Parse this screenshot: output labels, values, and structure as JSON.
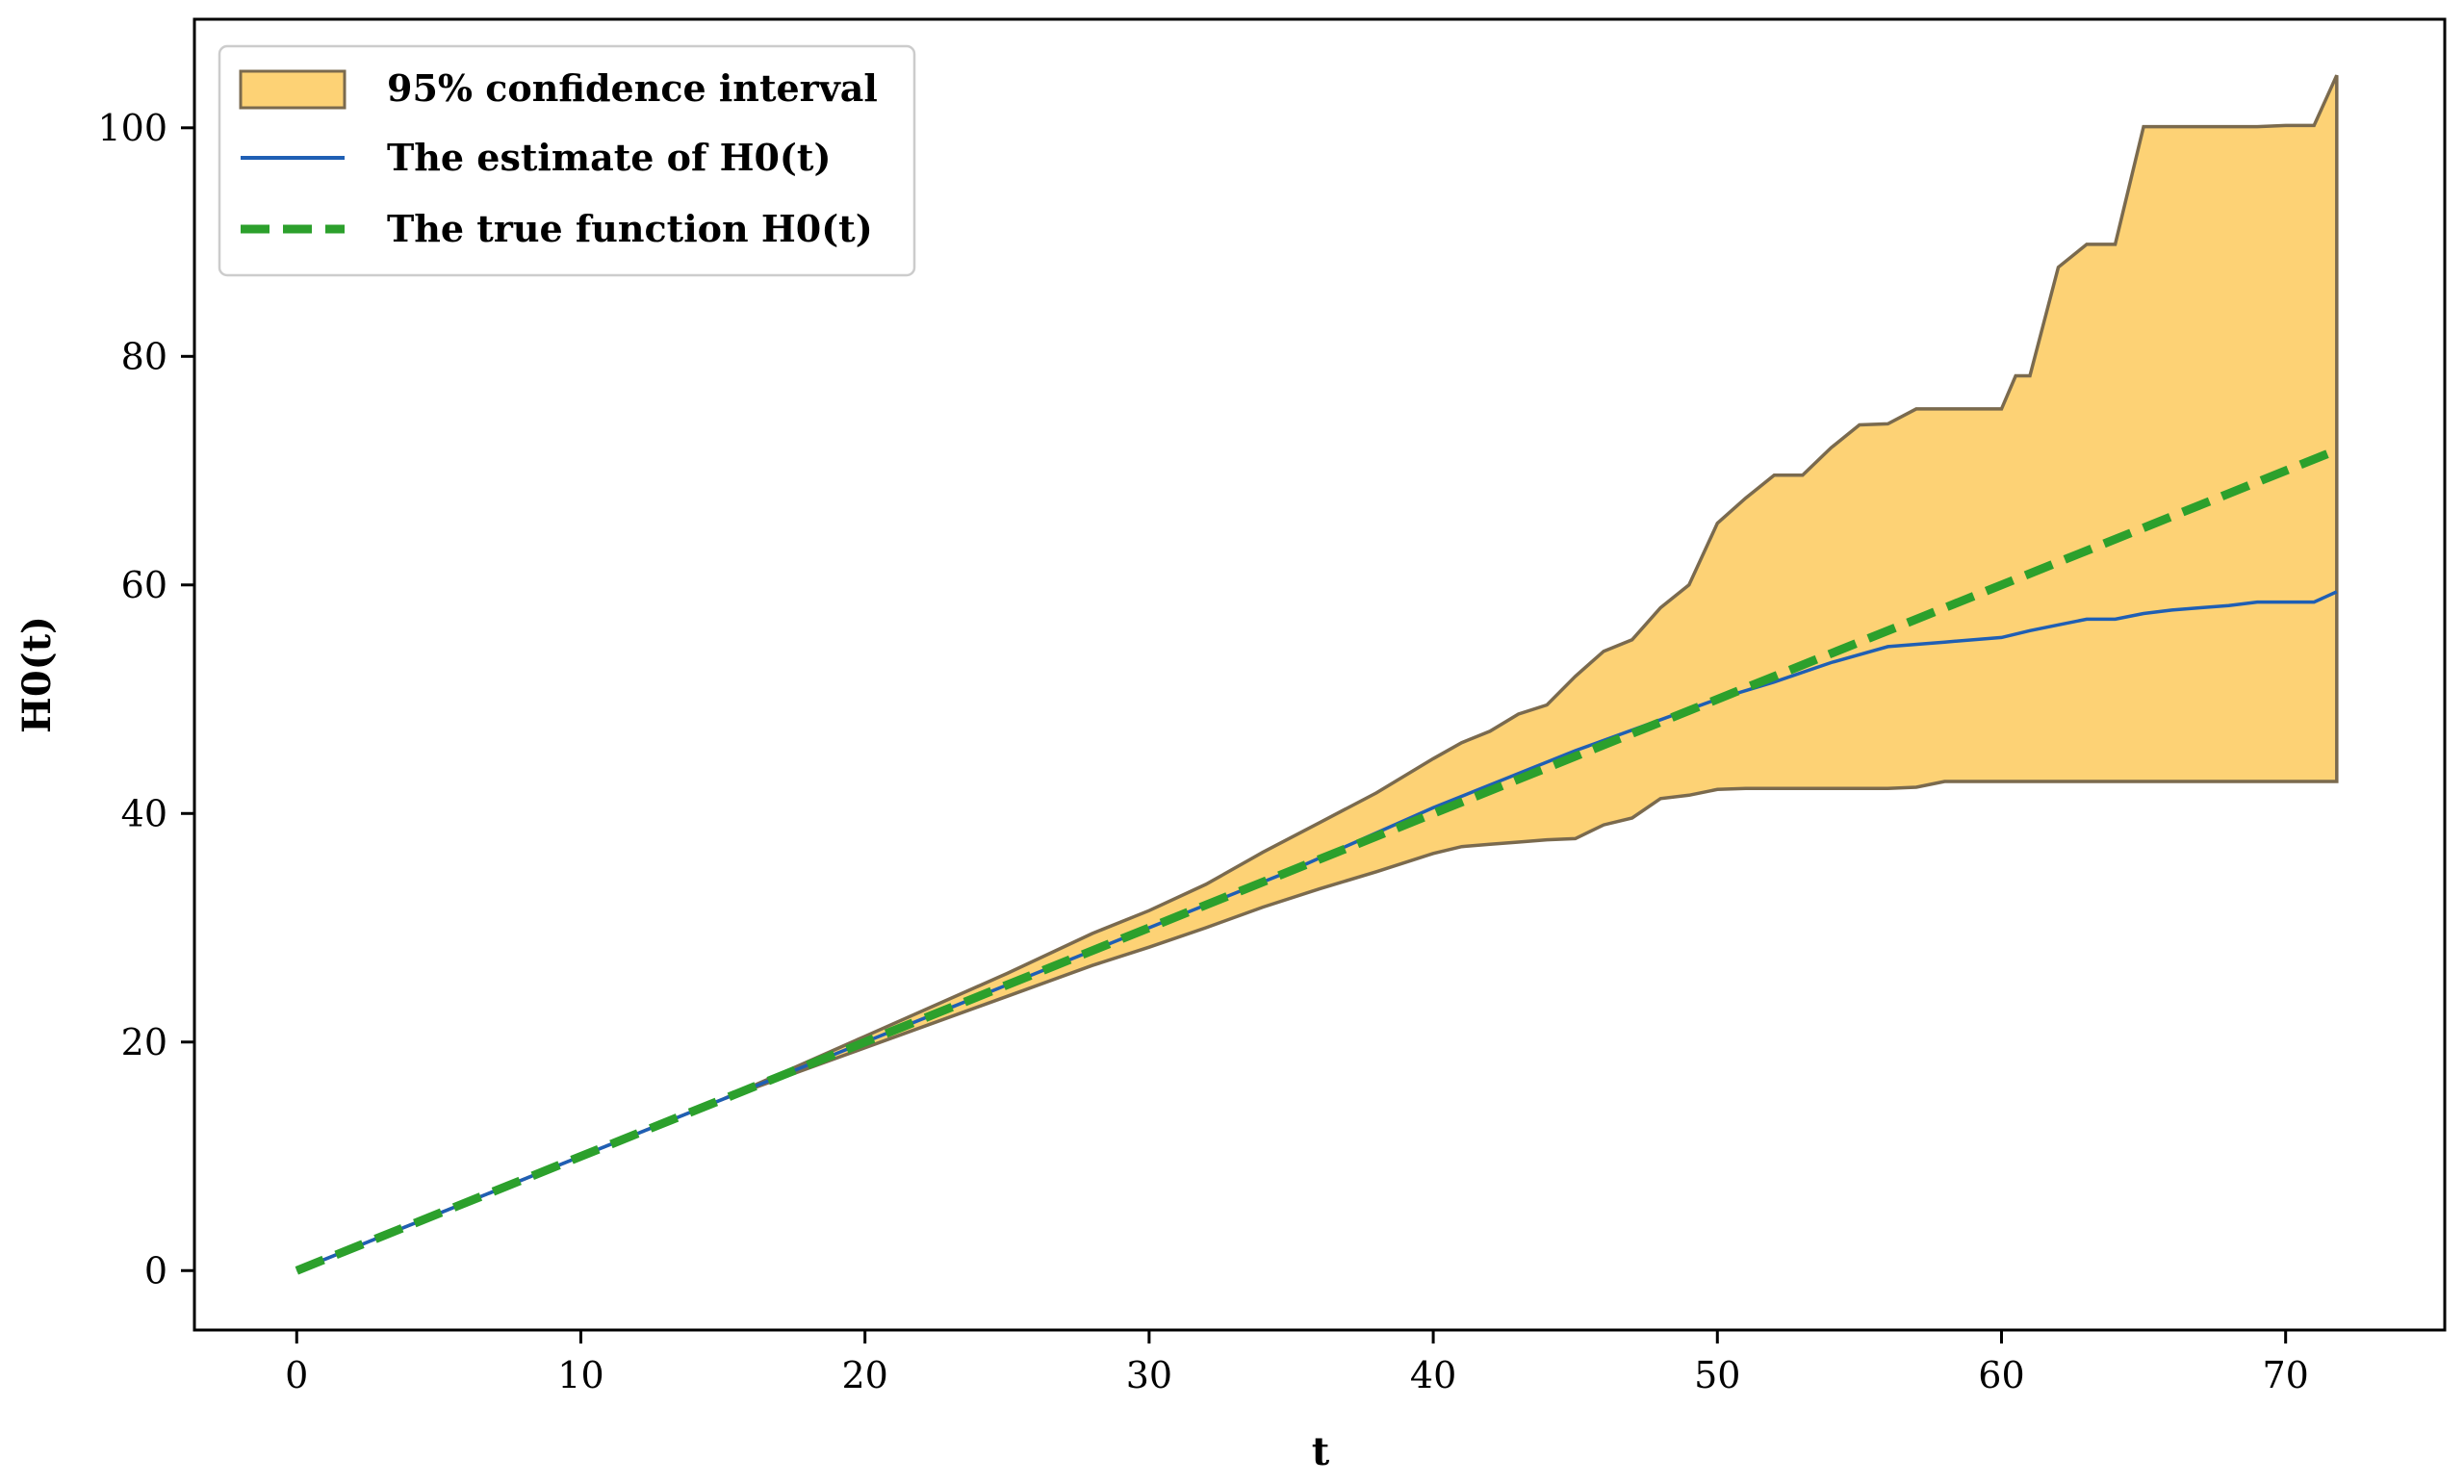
{
  "chart_data": {
    "type": "line",
    "title": "",
    "xlabel": "t",
    "ylabel": "H0(t)",
    "xlim": [
      -3.6,
      75.6
    ],
    "ylim": [
      -5.2,
      109.5
    ],
    "xticks": [
      0,
      10,
      20,
      30,
      40,
      50,
      60,
      70
    ],
    "yticks": [
      0,
      20,
      40,
      60,
      80,
      100
    ],
    "grid": false,
    "legend_position": "top-left",
    "colors": {
      "band_fill": "#fdd275",
      "band_edge": "#7a6a4e",
      "estimate": "#1f5fb4",
      "true": "#2ca02c"
    },
    "series": [
      {
        "name": "95% confidence interval",
        "kind": "band",
        "x": [
          0,
          5,
          10,
          15,
          20,
          25,
          28,
          30,
          32,
          34,
          36,
          38,
          40,
          41,
          42,
          43,
          44,
          45,
          46,
          47,
          48,
          49,
          50,
          51,
          52,
          53,
          54,
          55,
          56,
          57,
          58,
          59,
          60,
          60.5,
          61,
          62,
          63,
          64,
          65,
          66,
          67,
          68,
          69,
          70,
          71,
          71.8
        ],
        "lower": [
          0,
          5,
          10,
          15,
          19.5,
          24,
          26.7,
          28.3,
          30,
          31.8,
          33.4,
          34.9,
          36.5,
          37.1,
          37.3,
          37.5,
          37.7,
          37.8,
          39,
          39.6,
          41.3,
          41.6,
          42.1,
          42.2,
          42.2,
          42.2,
          42.2,
          42.2,
          42.2,
          42.3,
          42.8,
          42.8,
          42.8,
          42.8,
          42.8,
          42.8,
          42.8,
          42.8,
          42.8,
          42.8,
          42.8,
          42.8,
          42.8,
          42.8,
          42.8,
          42.8
        ],
        "upper": [
          0,
          5,
          10,
          15,
          20.5,
          26,
          29.5,
          31.5,
          33.8,
          36.6,
          39.2,
          41.8,
          44.8,
          46.2,
          47.2,
          48.7,
          49.5,
          52,
          54.2,
          55.2,
          58,
          60,
          65.4,
          67.6,
          69.6,
          69.6,
          72,
          74,
          74.1,
          75.4,
          75.4,
          75.4,
          75.4,
          78.3,
          78.3,
          87.8,
          89.8,
          89.8,
          100.1,
          100.1,
          100.1,
          100.1,
          100.1,
          100.2,
          100.2,
          104.6
        ]
      },
      {
        "name": "The estimate of H0(t)",
        "kind": "line",
        "x": [
          0,
          10,
          20,
          30,
          35,
          40,
          45,
          50,
          52,
          54,
          56,
          58,
          60,
          61,
          62,
          63,
          64,
          65,
          66,
          67,
          68,
          69,
          70,
          71,
          71.8
        ],
        "y": [
          0,
          10,
          20,
          30,
          35,
          40.5,
          45.5,
          50,
          51.5,
          53.2,
          54.6,
          55,
          55.4,
          56,
          56.5,
          57,
          57,
          57.5,
          57.8,
          58,
          58.2,
          58.5,
          58.5,
          58.5,
          59.4
        ]
      },
      {
        "name": "The true function H0(t)",
        "kind": "dashed-line",
        "x": [
          0,
          71.8
        ],
        "y": [
          0,
          71.8
        ]
      }
    ]
  }
}
